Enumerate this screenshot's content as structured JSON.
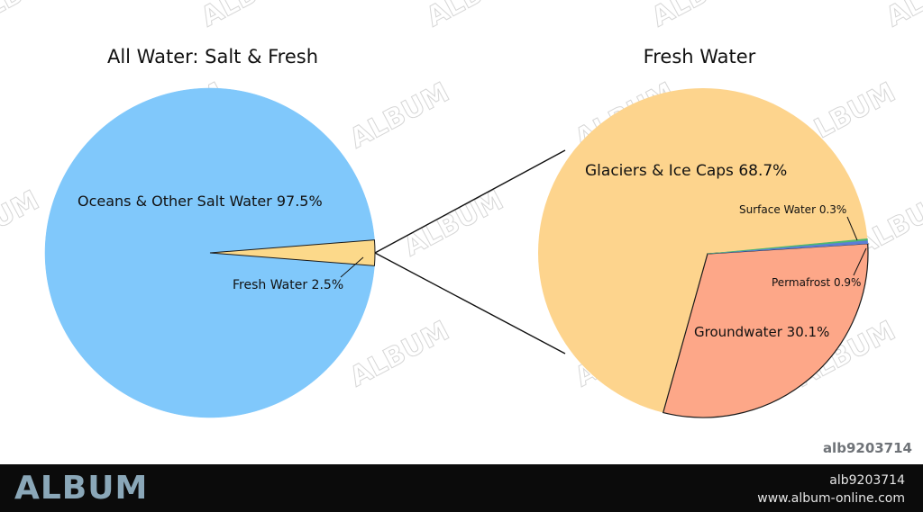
{
  "chart_data": [
    {
      "type": "pie",
      "title": "All Water: Salt & Fresh",
      "slices": [
        {
          "label": "Oceans & Other Salt Water 97.5%",
          "value": 97.5,
          "color": "#80c8fb"
        },
        {
          "label": "Fresh Water 2.5%",
          "value": 2.5,
          "color": "#fcd98a"
        }
      ]
    },
    {
      "type": "pie",
      "title": "Fresh Water",
      "slices": [
        {
          "label": "Glaciers & Ice Caps 68.7%",
          "value": 68.7,
          "color": "#fdd48d"
        },
        {
          "label": "Groundwater 30.1%",
          "value": 30.1,
          "color": "#fda788"
        },
        {
          "label": "Permafrost 0.9%",
          "value": 0.9,
          "color": "#5b7fd6"
        },
        {
          "label": "Surface Water 0.3%",
          "value": 0.3,
          "color": "#4fb870"
        }
      ]
    }
  ],
  "watermark": {
    "text": "ALBUM",
    "color": "#c9c9c9"
  },
  "image_id": "alb9203714",
  "footer": {
    "logo": "ALBUM",
    "id": "alb9203714",
    "url": "www.album-online.com"
  }
}
